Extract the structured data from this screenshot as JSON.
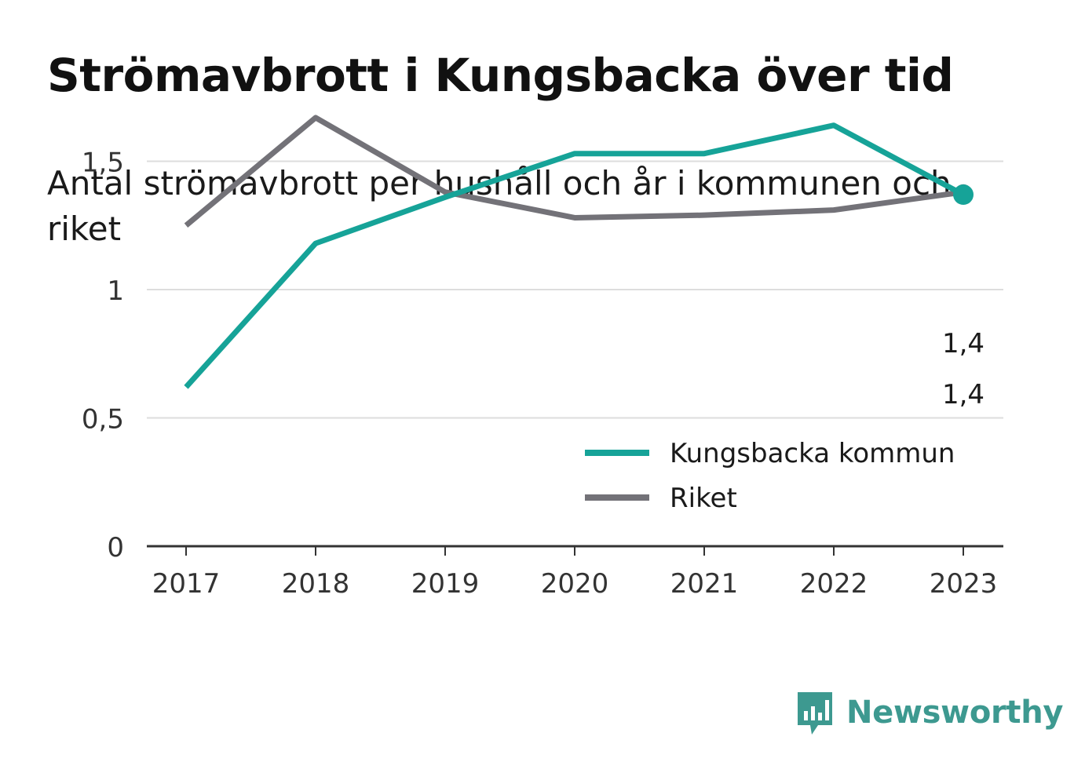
{
  "title": "Strömavbrott i Kungsbacka över tid",
  "subtitle": "Antal strömavbrott per hushåll och år i kommunen och riket",
  "brand": {
    "name": "Newsworthy",
    "color": "#3d9990",
    "icon": "bar-chart-speech-bubble-icon"
  },
  "chart_data": {
    "type": "line",
    "x": [
      "2017",
      "2018",
      "2019",
      "2020",
      "2021",
      "2022",
      "2023"
    ],
    "y_ticks": [
      0,
      0.5,
      1,
      1.5
    ],
    "y_tick_labels": [
      "0",
      "0,5",
      "1",
      "1,5"
    ],
    "ylim": [
      0,
      1.75
    ],
    "grid": true,
    "legend_position": "bottom-right",
    "series": [
      {
        "name": "Kungsbacka kommun",
        "color": "#16a398",
        "values": [
          0.62,
          1.18,
          1.36,
          1.53,
          1.53,
          1.64,
          1.37
        ],
        "end_label": "1,4"
      },
      {
        "name": "Riket",
        "color": "#737278",
        "values": [
          1.25,
          1.67,
          1.38,
          1.28,
          1.29,
          1.31,
          1.38
        ],
        "end_label": "1,4"
      }
    ]
  }
}
